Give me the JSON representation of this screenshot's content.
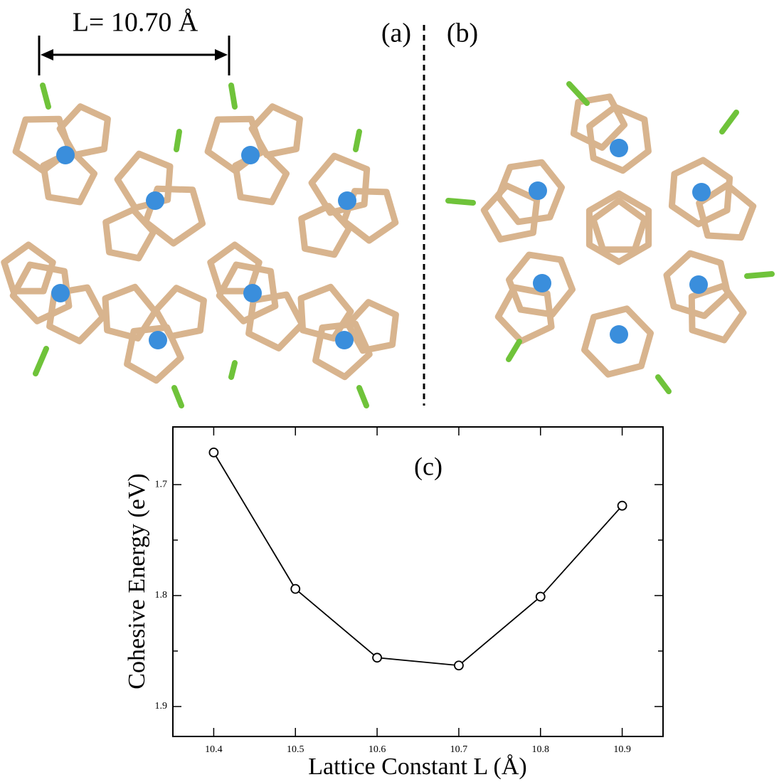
{
  "panel_labels": {
    "a": "(a)",
    "b": "(b)"
  },
  "dimension_label": "L= 10.70 Å",
  "chart_data": {
    "type": "line",
    "panel_label": "(c)",
    "x_label": "Lattice Constant L (Å)",
    "y_label": "Cohesive Energy (eV)",
    "x": [
      10.4,
      10.5,
      10.6,
      10.7,
      10.8,
      10.9
    ],
    "values": [
      1.671,
      1.794,
      1.856,
      1.863,
      1.801,
      1.719
    ],
    "color": "#000000",
    "marker": "open-circle",
    "xlim": [
      10.35,
      10.95
    ],
    "ylim": [
      1.648,
      1.927
    ],
    "y_inverted": true,
    "xticks": [
      10.4,
      10.5,
      10.6,
      10.7,
      10.8,
      10.9
    ],
    "yticks": [
      1.7,
      1.8,
      1.9
    ],
    "yminor_ticks": [
      1.75,
      1.85
    ]
  }
}
